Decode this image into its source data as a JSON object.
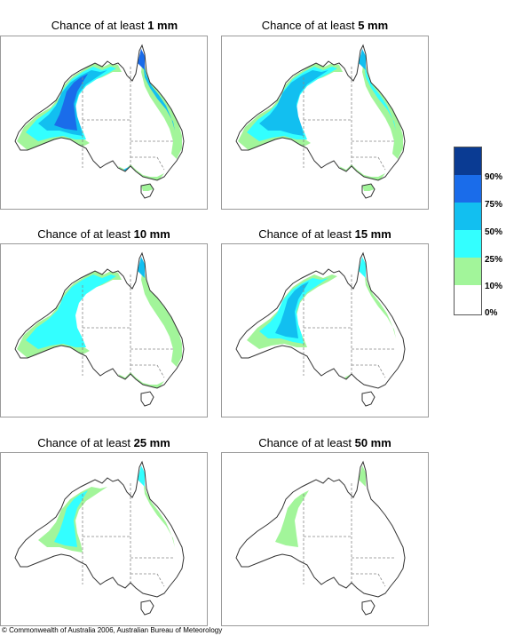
{
  "title_prefix": "Chance of at least",
  "panels": [
    {
      "amount": "1 mm"
    },
    {
      "amount": "5 mm"
    },
    {
      "amount": "10 mm"
    },
    {
      "amount": "15 mm"
    },
    {
      "amount": "25 mm"
    },
    {
      "amount": "50 mm"
    }
  ],
  "legend": {
    "colors": [
      "#0a3b93",
      "#1a6cea",
      "#12bff0",
      "#33ffff",
      "#a2f59a",
      "#ffffff"
    ],
    "labels": [
      "90%",
      "75%",
      "50%",
      "25%",
      "10%",
      "0%"
    ]
  },
  "copyright": "© Commonwealth of Australia 2006, Australian Bureau of Meteorology"
}
